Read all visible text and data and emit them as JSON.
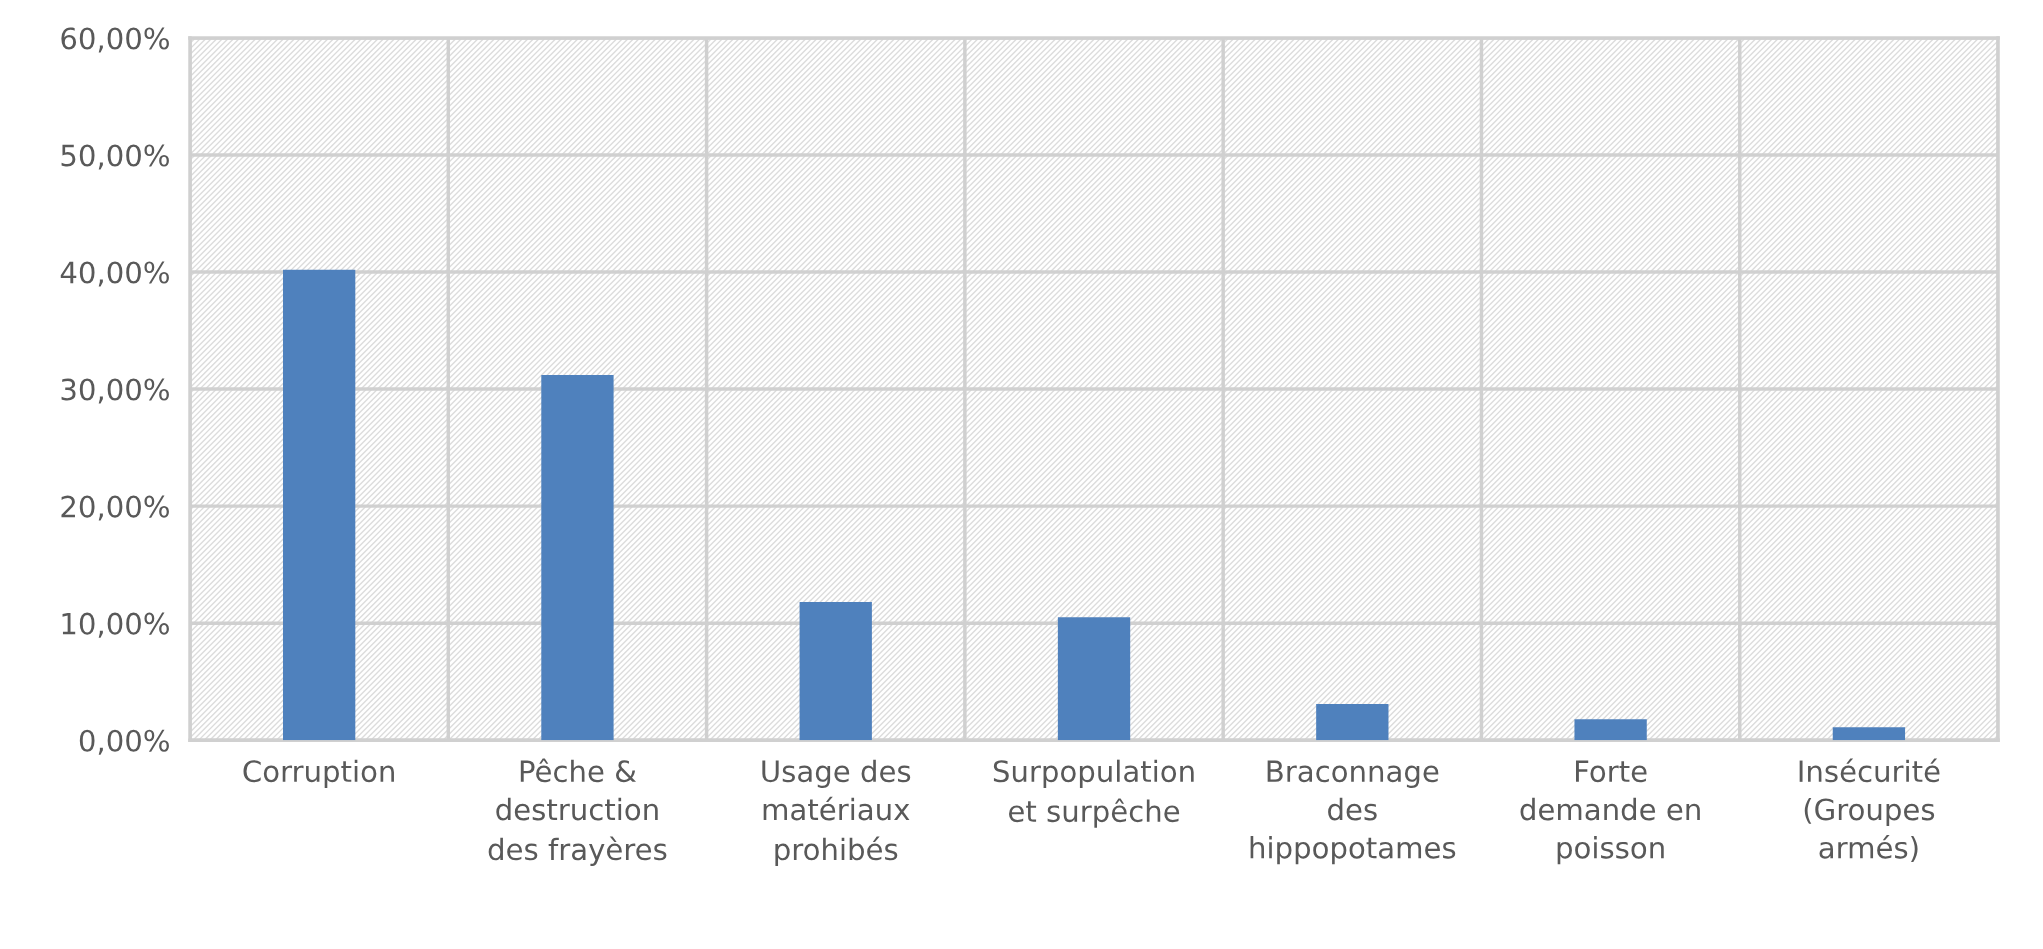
{
  "chart_data": {
    "type": "bar",
    "categories": [
      "Corruption",
      "Pêche &\ndestruction\ndes frayères",
      "Usage des\nmatériaux\nprohibés",
      "Surpopulation\net surpêche",
      "Braconnage\ndes\nhippopotames",
      "Forte\ndemande en\npoisson",
      "Insécurité\n(Groupes\narmés)"
    ],
    "values": [
      40.2,
      31.2,
      11.8,
      10.5,
      3.1,
      1.8,
      1.1
    ],
    "color": "#4f81bd",
    "ylim": [
      0,
      60
    ],
    "yticks": [
      {
        "value": 0,
        "label": "0,00%"
      },
      {
        "value": 10,
        "label": "10,00%"
      },
      {
        "value": 20,
        "label": "20,00%"
      },
      {
        "value": 30,
        "label": "30,00%"
      },
      {
        "value": 40,
        "label": "40,00%"
      },
      {
        "value": 50,
        "label": "50,00%"
      },
      {
        "value": 60,
        "label": "60,00%"
      }
    ],
    "grid": true
  }
}
